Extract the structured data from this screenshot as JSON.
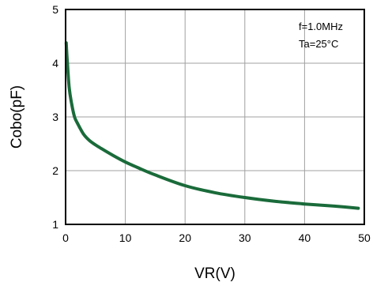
{
  "chart_data": {
    "type": "line",
    "title": "",
    "xlabel": "VR(V)",
    "ylabel": "Cobo(pF)",
    "xlim": [
      0,
      50
    ],
    "ylim": [
      1,
      5
    ],
    "x_ticks": [
      "0",
      "10",
      "20",
      "30",
      "40",
      "50"
    ],
    "y_ticks": [
      "1",
      "2",
      "3",
      "4",
      "5"
    ],
    "grid": true,
    "annotations": [
      "f=1.0MHz",
      "Ta=25°C"
    ],
    "series_color": "#1a6b3a",
    "series": [
      {
        "x": [
          0.1,
          0.3,
          0.6,
          1,
          1.5,
          2,
          3,
          4,
          5,
          6,
          8,
          10,
          12,
          15,
          20,
          25,
          30,
          35,
          40,
          45,
          49
        ],
        "y": [
          4.38,
          4.0,
          3.55,
          3.25,
          3.0,
          2.88,
          2.68,
          2.56,
          2.48,
          2.41,
          2.28,
          2.16,
          2.06,
          1.92,
          1.72,
          1.59,
          1.5,
          1.43,
          1.38,
          1.34,
          1.3
        ]
      }
    ]
  }
}
